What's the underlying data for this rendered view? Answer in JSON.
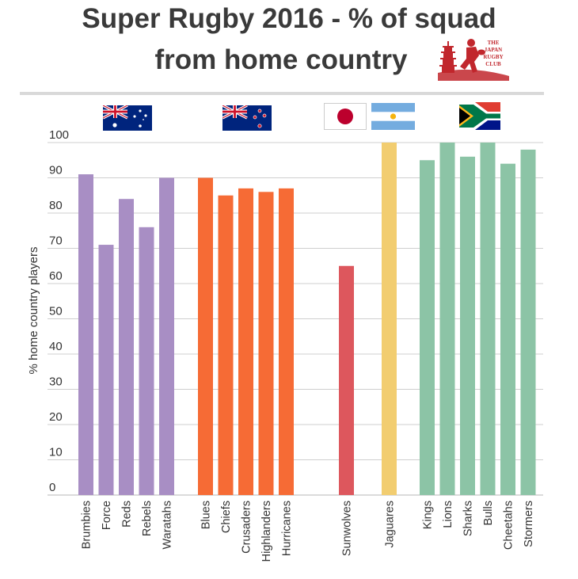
{
  "title_line1": "Super Rugby 2016 - % of squad",
  "title_line2": "from home country",
  "logo": {
    "text_lines": [
      "THE",
      "JAPAN",
      "RUGBY",
      "CLUB"
    ]
  },
  "flags": [
    "australia-flag",
    "new-zealand-flag",
    "japan-flag",
    "argentina-flag",
    "south-africa-flag"
  ],
  "colors": {
    "australia": "#a88ec4",
    "new_zealand": "#f66b35",
    "japan": "#dd575d",
    "argentina": "#f2cd70",
    "south_africa": "#8cc4a6",
    "grid": "#cfcfcf",
    "text": "#333333"
  },
  "chart_data": {
    "type": "bar",
    "title": "Super Rugby 2016 - % of squad from home country",
    "xlabel": "",
    "ylabel": "% home country players",
    "ylim": [
      0,
      100
    ],
    "yticks": [
      0,
      10,
      20,
      30,
      40,
      50,
      60,
      70,
      80,
      90,
      100
    ],
    "groups": [
      {
        "country": "Australia",
        "color_key": "australia",
        "teams": [
          "Brumbies",
          "Force",
          "Reds",
          "Rebels",
          "Waratahs"
        ],
        "values": [
          91,
          71,
          84,
          76,
          90
        ]
      },
      {
        "country": "New Zealand",
        "color_key": "new_zealand",
        "teams": [
          "Blues",
          "Chiefs",
          "Crusaders",
          "Highlanders",
          "Hurricanes"
        ],
        "values": [
          90,
          85,
          87,
          86,
          87
        ]
      },
      {
        "country": "Japan",
        "color_key": "japan",
        "teams": [
          "Sunwolves"
        ],
        "values": [
          65
        ]
      },
      {
        "country": "Argentina",
        "color_key": "argentina",
        "teams": [
          "Jaguares"
        ],
        "values": [
          100
        ]
      },
      {
        "country": "South Africa",
        "color_key": "south_africa",
        "teams": [
          "Kings",
          "Lions",
          "Sharks",
          "Bulls",
          "Cheetahs",
          "Stormers"
        ],
        "values": [
          95,
          100,
          96,
          100,
          94,
          98
        ]
      }
    ]
  }
}
